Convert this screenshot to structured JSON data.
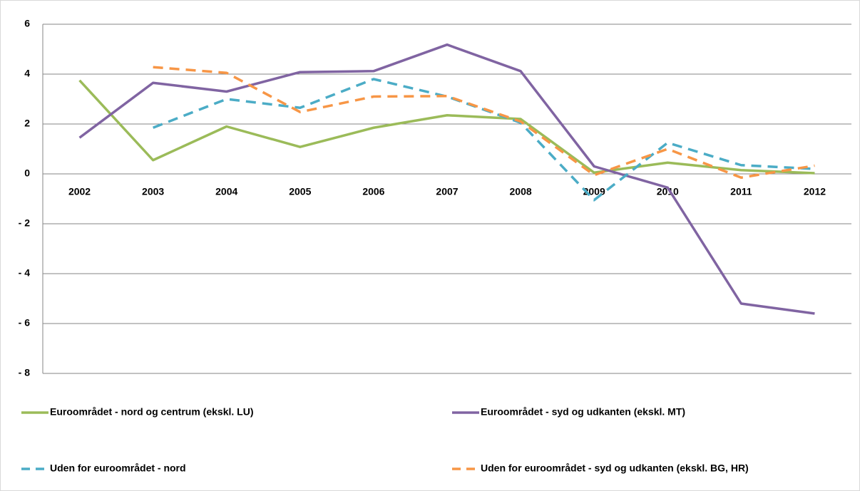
{
  "chart_data": {
    "type": "line",
    "categories": [
      "2002",
      "2003",
      "2004",
      "2005",
      "2006",
      "2007",
      "2008",
      "2009",
      "2010",
      "2011",
      "2012"
    ],
    "series": [
      {
        "name": "Euroområdet - nord og centrum (ekskl. LU)",
        "color": "#9bbb59",
        "dash": false,
        "values": [
          3.75,
          0.55,
          1.9,
          1.08,
          1.85,
          2.35,
          2.2,
          0.05,
          0.45,
          0.15,
          0.03
        ]
      },
      {
        "name": "Euroområdet - syd og udkanten (ekskl. MT)",
        "color": "#8064a2",
        "dash": false,
        "values": [
          1.45,
          3.65,
          3.3,
          4.08,
          4.12,
          5.18,
          4.12,
          0.3,
          -0.55,
          -5.2,
          -5.6
        ]
      },
      {
        "name": "Uden for euroområdet - nord",
        "color": "#4bacc6",
        "dash": true,
        "values": [
          null,
          1.85,
          3.0,
          2.65,
          3.8,
          3.1,
          2.05,
          -1.05,
          1.25,
          0.35,
          0.2
        ]
      },
      {
        "name": "Uden for euroområdet - syd og udkanten (ekskl. BG, HR)",
        "color": "#f79646",
        "dash": true,
        "values": [
          null,
          4.28,
          4.05,
          2.48,
          3.1,
          3.12,
          2.1,
          -0.05,
          1.0,
          -0.15,
          0.33
        ]
      }
    ],
    "ylim": [
      -8,
      6
    ],
    "yticks": [
      {
        "value": -8,
        "label": "- 8"
      },
      {
        "value": -6,
        "label": "- 6"
      },
      {
        "value": -4,
        "label": "- 4"
      },
      {
        "value": -2,
        "label": "- 2"
      },
      0,
      2,
      4,
      6
    ],
    "grid": true
  }
}
